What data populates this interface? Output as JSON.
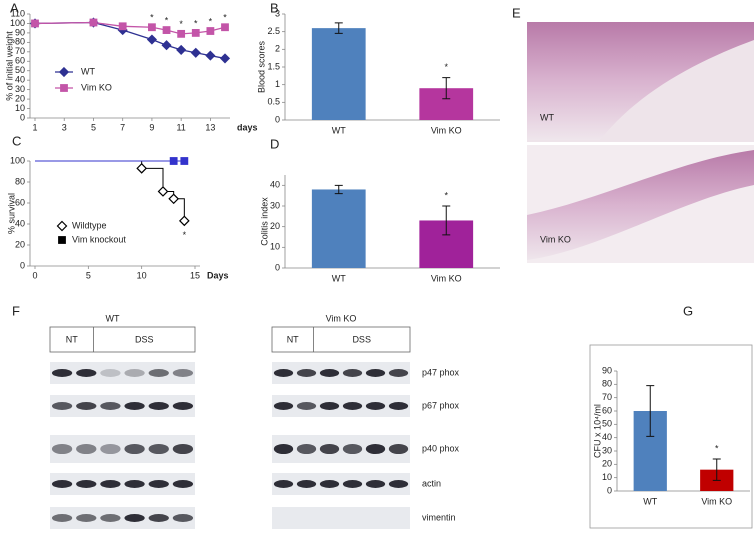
{
  "figure": {
    "panel_labels": [
      "A",
      "B",
      "C",
      "D",
      "E",
      "F",
      "G"
    ],
    "histology": [
      "WT",
      "Vim KO"
    ],
    "blots": {
      "groups": [
        "WT",
        "Vim KO"
      ],
      "conditions": [
        "NT",
        "DSS"
      ],
      "proteins": [
        "p47 phox",
        "p67 phox",
        "p40 phox",
        "actin",
        "vimentin"
      ]
    }
  },
  "chart_data": [
    {
      "type": "line",
      "ylabel": "% of initial weight",
      "xlabel": "days",
      "x": [
        1,
        5,
        7,
        9,
        10,
        11,
        12,
        13,
        14
      ],
      "series": [
        {
          "name": "WT",
          "color": "#2e3192",
          "marker": "diamond",
          "values": [
            100,
            101,
            93,
            83,
            77,
            72,
            69,
            66,
            63
          ]
        },
        {
          "name": "Vim KO",
          "color": "#c355a8",
          "marker": "square",
          "values": [
            100,
            101,
            97,
            96,
            93,
            89,
            90,
            92,
            96
          ]
        }
      ],
      "xlim": [
        1,
        14
      ],
      "xticks": [
        1,
        3,
        5,
        7,
        9,
        11,
        13
      ],
      "ylim": [
        0,
        110
      ],
      "yticks": [
        0,
        10,
        20,
        30,
        40,
        50,
        60,
        70,
        80,
        90,
        100,
        110
      ],
      "annotations": [
        {
          "text": "*",
          "x": 9
        },
        {
          "text": "*",
          "x": 10
        },
        {
          "text": "*",
          "x": 11
        },
        {
          "text": "*",
          "x": 12
        },
        {
          "text": "*",
          "x": 13
        },
        {
          "text": "*",
          "x": 14
        }
      ]
    },
    {
      "type": "bar",
      "ylabel": "Blood scores",
      "categories": [
        "WT",
        "Vim KO"
      ],
      "values": [
        2.6,
        0.9
      ],
      "errors": [
        0.15,
        0.3
      ],
      "colors": [
        "#4f81bd",
        "#b5369e"
      ],
      "ylim": [
        0,
        3
      ],
      "yticks": [
        0,
        0.5,
        1,
        1.5,
        2,
        2.5,
        3
      ],
      "annotations": [
        {
          "text": "*",
          "x": "Vim KO"
        }
      ]
    },
    {
      "type": "step",
      "ylabel": "% survival",
      "xlabel": "Days",
      "series": [
        {
          "name": "Wildtype",
          "color": "#000000",
          "marker": "diamond",
          "x": [
            0,
            10,
            12,
            13,
            14
          ],
          "values": [
            100,
            93,
            71,
            64,
            43
          ]
        },
        {
          "name": "Vim knockout",
          "color": "#3333cc",
          "marker": "square",
          "x": [
            0,
            13,
            14
          ],
          "values": [
            100,
            100,
            100
          ]
        }
      ],
      "xlim": [
        0,
        15
      ],
      "xticks": [
        0,
        5,
        10,
        15
      ],
      "ylim": [
        0,
        100
      ],
      "yticks": [
        0,
        20,
        40,
        60,
        80,
        100
      ],
      "annotations": [
        {
          "text": "*",
          "x": 14
        }
      ]
    },
    {
      "type": "bar",
      "ylabel": "Colitis index",
      "categories": [
        "WT",
        "Vim KO"
      ],
      "values": [
        38,
        23
      ],
      "errors": [
        2,
        7
      ],
      "colors": [
        "#4f81bd",
        "#a0229a"
      ],
      "ylim": [
        0,
        45
      ],
      "yticks": [
        0,
        10,
        20,
        30,
        40
      ],
      "annotations": [
        {
          "text": "*",
          "x": "Vim KO"
        }
      ]
    },
    {
      "type": "bar",
      "ylabel": "CFU x 10⁴/ml",
      "categories": [
        "WT",
        "Vim KO"
      ],
      "values": [
        60,
        16
      ],
      "errors": [
        19,
        8
      ],
      "colors": [
        "#4f81bd",
        "#c00000"
      ],
      "ylim": [
        0,
        90
      ],
      "yticks": [
        0,
        10,
        20,
        30,
        40,
        50,
        60,
        70,
        80,
        90
      ],
      "annotations": [
        {
          "text": "*",
          "x": "Vim KO"
        }
      ]
    }
  ]
}
